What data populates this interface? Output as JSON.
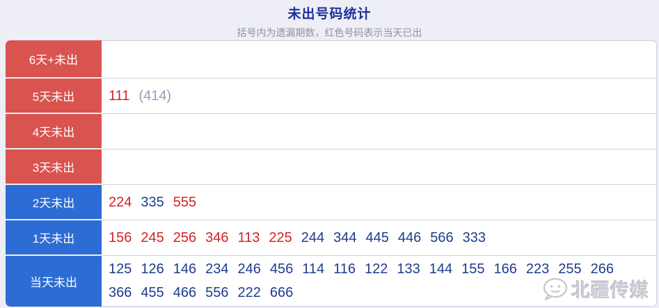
{
  "header": {
    "title": "未出号码统计",
    "subtitle": "括号内为遗漏期数，红色号码表示当天已出"
  },
  "colors": {
    "page_bg": "#edeef6",
    "title_color": "#1c2f9c",
    "subtitle_color": "#8f929e",
    "red_label_bg": "#d9534f",
    "blue_label_bg": "#2c6cd4",
    "red_num_color": "#d22424",
    "blue_num_color": "#1e3c8c",
    "gray_num_color": "#9a9db8",
    "line_color": "#ced1de",
    "watermark_color": "#caccd4"
  },
  "table": {
    "rows": [
      {
        "label": "6天+未出",
        "label_type": "red",
        "numbers": []
      },
      {
        "label": "5天未出",
        "label_type": "red",
        "numbers": [
          {
            "text": "111",
            "color": "red"
          },
          {
            "text": "(414)",
            "color": "gray"
          }
        ]
      },
      {
        "label": "4天未出",
        "label_type": "red",
        "numbers": []
      },
      {
        "label": "3天未出",
        "label_type": "red",
        "numbers": []
      },
      {
        "label": "2天未出",
        "label_type": "blue",
        "numbers": [
          {
            "text": "224",
            "color": "red"
          },
          {
            "text": "335",
            "color": "blue"
          },
          {
            "text": "555",
            "color": "red"
          }
        ]
      },
      {
        "label": "1天未出",
        "label_type": "blue",
        "numbers": [
          {
            "text": "156",
            "color": "red"
          },
          {
            "text": "245",
            "color": "red"
          },
          {
            "text": "256",
            "color": "red"
          },
          {
            "text": "346",
            "color": "red"
          },
          {
            "text": "113",
            "color": "red"
          },
          {
            "text": "225",
            "color": "red"
          },
          {
            "text": "244",
            "color": "blue"
          },
          {
            "text": "344",
            "color": "blue"
          },
          {
            "text": "445",
            "color": "blue"
          },
          {
            "text": "446",
            "color": "blue"
          },
          {
            "text": "566",
            "color": "blue"
          },
          {
            "text": "333",
            "color": "blue"
          }
        ]
      },
      {
        "label": "当天未出",
        "label_type": "blue",
        "numbers": [
          {
            "text": "125",
            "color": "blue"
          },
          {
            "text": "126",
            "color": "blue"
          },
          {
            "text": "146",
            "color": "blue"
          },
          {
            "text": "234",
            "color": "blue"
          },
          {
            "text": "246",
            "color": "blue"
          },
          {
            "text": "456",
            "color": "blue"
          },
          {
            "text": "114",
            "color": "blue"
          },
          {
            "text": "116",
            "color": "blue"
          },
          {
            "text": "122",
            "color": "blue"
          },
          {
            "text": "133",
            "color": "blue"
          },
          {
            "text": "144",
            "color": "blue"
          },
          {
            "text": "155",
            "color": "blue"
          },
          {
            "text": "166",
            "color": "blue"
          },
          {
            "text": "223",
            "color": "blue"
          },
          {
            "text": "255",
            "color": "blue"
          },
          {
            "text": "266",
            "color": "blue"
          },
          {
            "text": "366",
            "color": "blue"
          },
          {
            "text": "455",
            "color": "blue"
          },
          {
            "text": "466",
            "color": "blue"
          },
          {
            "text": "556",
            "color": "blue"
          },
          {
            "text": "222",
            "color": "blue"
          },
          {
            "text": "666",
            "color": "blue"
          }
        ]
      }
    ]
  },
  "watermark": {
    "text": "北疆传媒",
    "icon": "chat-bubble-face-icon"
  }
}
